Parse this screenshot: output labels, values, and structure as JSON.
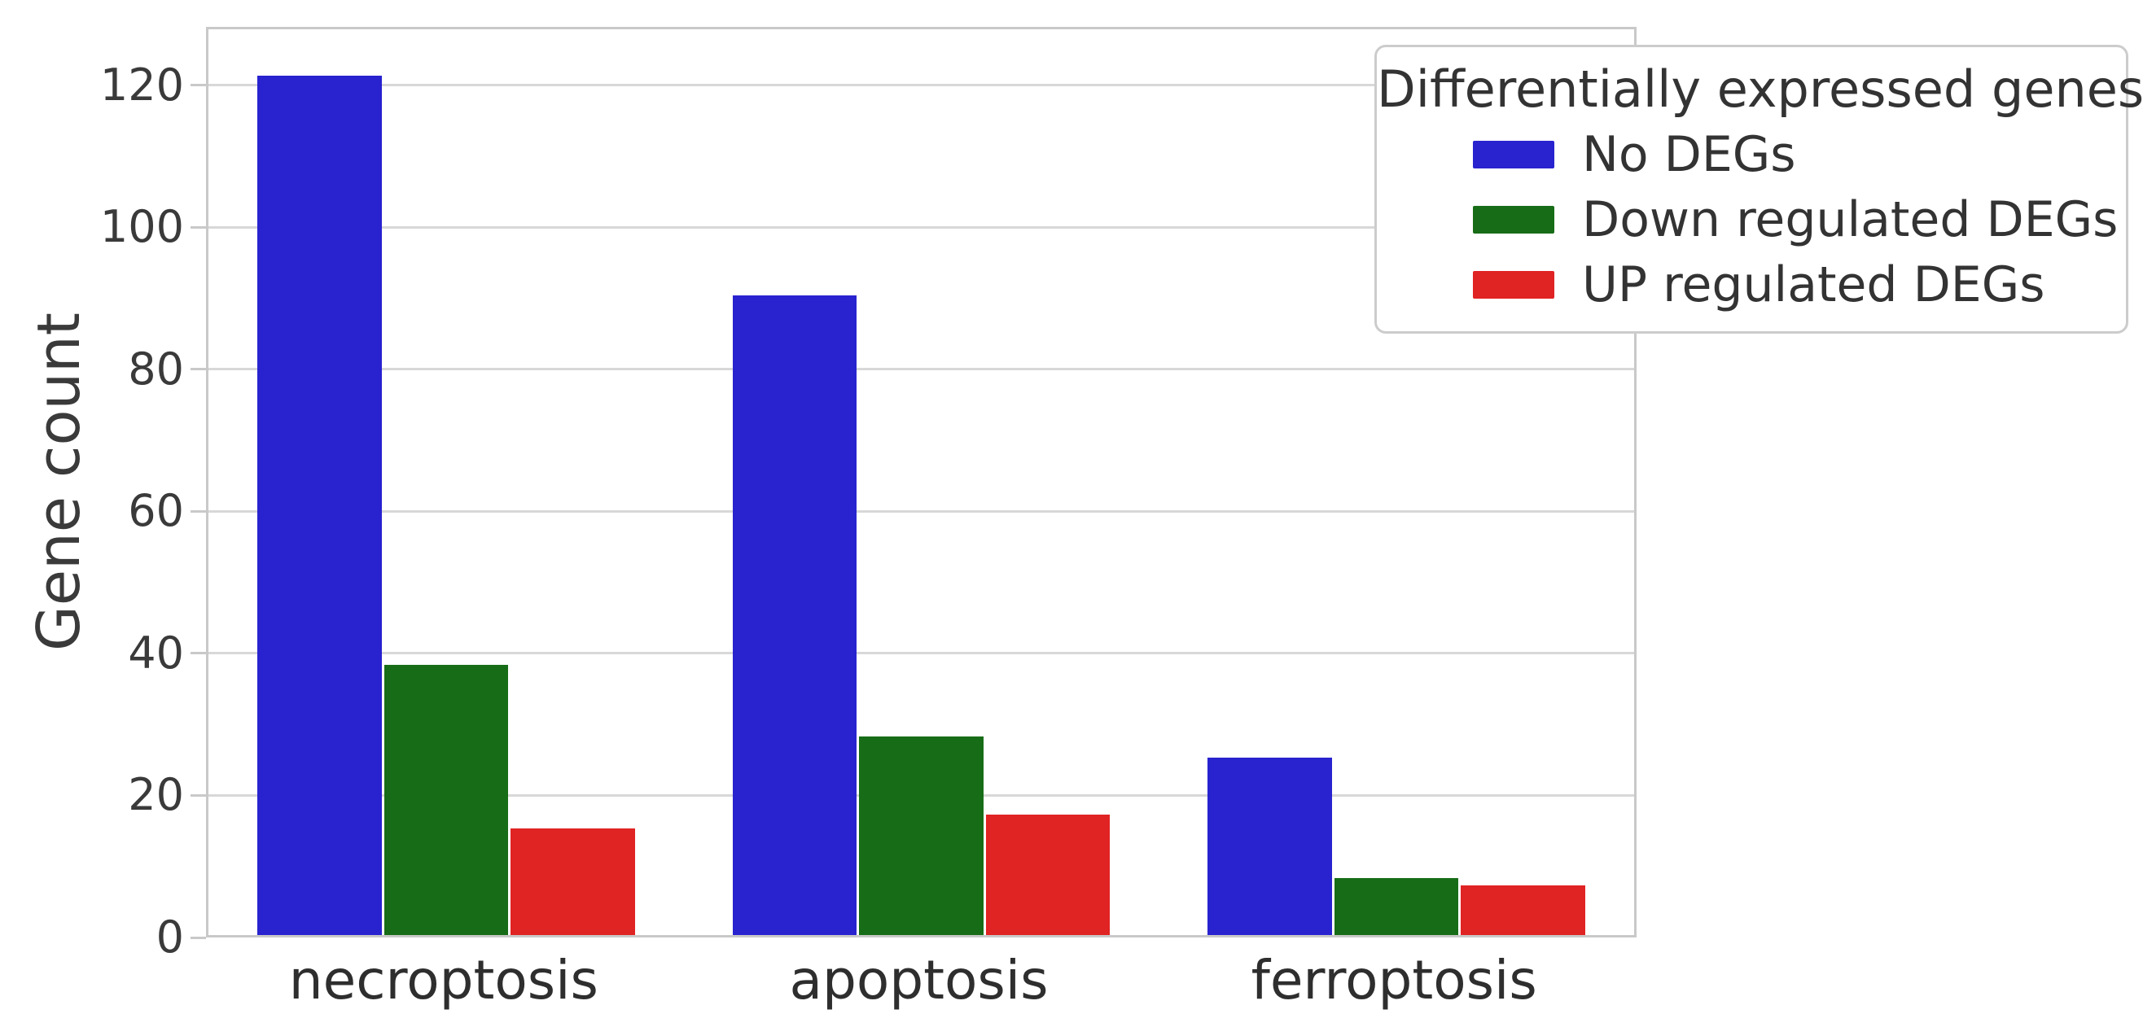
{
  "chart_data": {
    "type": "bar",
    "title": "",
    "categories": [
      "necroptosis",
      "apoptosis",
      "ferroptosis"
    ],
    "series": [
      {
        "name": "No DEGs",
        "color": "#2823cf",
        "values": [
          121,
          90,
          25
        ]
      },
      {
        "name": "Down regulated DEGs",
        "color": "#176d17",
        "values": [
          38,
          28,
          8
        ]
      },
      {
        "name": "UP regulated DEGs",
        "color": "#e02323",
        "values": [
          15,
          17,
          7
        ]
      }
    ],
    "xlabel": "",
    "ylabel": "Gene count",
    "yticks": [
      0,
      20,
      40,
      60,
      80,
      100,
      120
    ],
    "ylim": [
      0,
      128.2
    ],
    "grid": "horizontal",
    "legend": {
      "title": "Differentially expressed genes",
      "position": "upper-right"
    },
    "colors": {
      "axis_frame": "#c9c9c9",
      "gridline": "#d8d8d8",
      "tick_text": "#3a3a3a",
      "background": "#ffffff"
    }
  }
}
